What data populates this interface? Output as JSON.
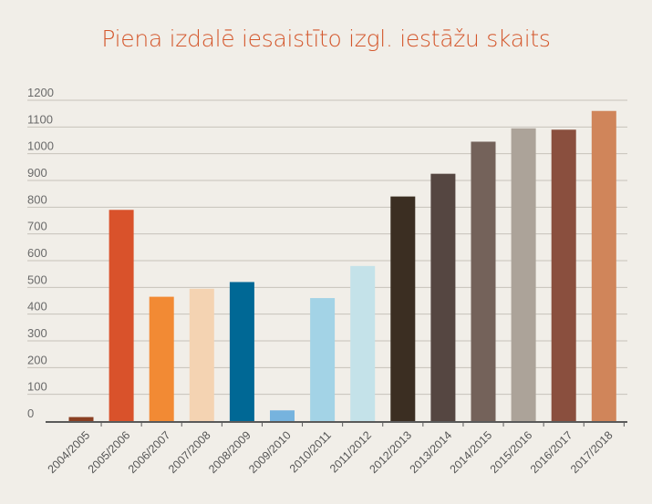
{
  "chart_data": {
    "type": "bar",
    "title": "Piena izdalē iesaistīto izgl. iestāžu skaits",
    "xlabel": "",
    "ylabel": "",
    "ylim": [
      0,
      1200
    ],
    "yticks": [
      0,
      100,
      200,
      300,
      400,
      500,
      600,
      700,
      800,
      900,
      1000,
      1100,
      1200
    ],
    "grid": true,
    "legend": "none",
    "categories": [
      "2004/2005",
      "2005/2006",
      "2006/2007",
      "2007/2008",
      "2008/2009",
      "2009/2010",
      "2010/2011",
      "2011/2012",
      "2012/2013",
      "2013/2014",
      "2014/2015",
      "2015/2016",
      "2016/2017",
      "2017/2018"
    ],
    "values": [
      15,
      790,
      465,
      495,
      520,
      40,
      460,
      580,
      840,
      925,
      1045,
      1095,
      1090,
      1160
    ],
    "colors": [
      "#8a3f22",
      "#d9522b",
      "#f28a34",
      "#f4d3b2",
      "#006895",
      "#76b3de",
      "#a3d3e6",
      "#c4e2e9",
      "#3b2e22",
      "#554641",
      "#74625a",
      "#aca399",
      "#8a4f3e",
      "#d0855a"
    ]
  }
}
